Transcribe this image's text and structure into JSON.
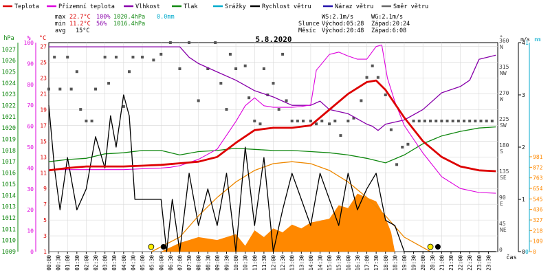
{
  "chart_data": {
    "type": "line",
    "title": "5.8.2020",
    "xlabel": "čas",
    "x_ticks": [
      "00:00",
      "00:30",
      "01:00",
      "01:30",
      "02:00",
      "02:30",
      "03:00",
      "03:30",
      "04:00",
      "04:30",
      "05:00",
      "05:30",
      "06:00",
      "06:30",
      "07:00",
      "07:30",
      "08:00",
      "08:30",
      "09:00",
      "09:30",
      "10:00",
      "10:30",
      "11:00",
      "11:30",
      "12:00",
      "12:30",
      "13:00",
      "13:30",
      "14:00",
      "14:30",
      "15:00",
      "15:30",
      "16:00",
      "16:30",
      "17:00",
      "17:30",
      "18:00",
      "18:30",
      "19:00",
      "19:30",
      "20:00",
      "20:30",
      "21:00",
      "21:30",
      "22:00",
      "22:30",
      "23:00",
      "23:30"
    ],
    "legend": [
      {
        "label": "Teplota",
        "color": "#dd0000"
      },
      {
        "label": "Přízemní teplota",
        "color": "#dd00dd"
      },
      {
        "label": "Vlhkost",
        "color": "#8800aa"
      },
      {
        "label": "Tlak",
        "color": "#118811"
      },
      {
        "label": "Srážky",
        "color": "#00aacc"
      },
      {
        "label": "Rychlost větru",
        "color": "#000000"
      },
      {
        "label": "Náraz větru",
        "color": "#2211aa"
      },
      {
        "label": "Směr větru",
        "color": "#666666"
      }
    ],
    "stats": {
      "max": {
        "label": "max",
        "temp": "22.7°C",
        "hum": "100%",
        "press": "1020.4hPa",
        "rain": "0.0mm"
      },
      "min": {
        "label": "min",
        "temp": "11.2°C",
        "hum": "56%",
        "press": "1016.4hPa"
      },
      "avg": {
        "label": "avg",
        "temp": "15°C"
      }
    },
    "info": {
      "ws": "WS:2.1m/s",
      "wg": "WG:2.1m/s",
      "sun_label": "Slunce",
      "sunrise": "Východ:05:28",
      "sunset": "Západ:20:24",
      "moon_label": "Měsíc",
      "moonrise": "Východ:20:48",
      "moonset": "Západ:6:08"
    },
    "axes": {
      "hpa": {
        "unit": "hPa",
        "ticks": [
          "1027",
          "1026",
          "1025",
          "1024",
          "1023",
          "1022",
          "1021",
          "1020",
          "1019",
          "1018",
          "1017",
          "1016",
          "1015",
          "1014",
          "1013",
          "1012",
          "1011",
          "1010",
          "1009"
        ],
        "range": [
          1009,
          1027.6
        ]
      },
      "pct": {
        "unit": "%",
        "ticks": [
          "100",
          "90",
          "80",
          "70",
          "60",
          "50",
          "40",
          "30",
          "20",
          "10",
          "0"
        ],
        "range": [
          0,
          100
        ]
      },
      "temp": {
        "unit": "°C",
        "ticks": [
          "27",
          "25",
          "23",
          "21",
          "19",
          "17",
          "15",
          "13",
          "11",
          "9",
          "7",
          "5",
          "3",
          "1"
        ],
        "range": [
          1,
          27.5
        ]
      },
      "dir": {
        "unit": "°",
        "ticks": [
          {
            "deg": "360",
            "name": "N"
          },
          {
            "deg": "315",
            "name": "NW"
          },
          {
            "deg": "270",
            "name": "W"
          },
          {
            "deg": "225",
            "name": "SW"
          },
          {
            "deg": "180",
            "name": "S"
          },
          {
            "deg": "135",
            "name": "SE"
          },
          {
            "deg": "90",
            "name": "E"
          },
          {
            "deg": "45",
            "name": "NE"
          },
          {
            "deg": "0",
            "name": ""
          }
        ],
        "range": [
          0,
          360
        ]
      },
      "wind": {
        "unit": "m/s",
        "ticks": [
          "4",
          "3",
          "2",
          "1",
          "0"
        ],
        "range": [
          0,
          4
        ]
      },
      "rain": {
        "unit": "mm",
        "ticks": [
          "1",
          "0"
        ],
        "range": [
          0,
          1
        ]
      },
      "solar": {
        "ticks": [
          "981",
          "872",
          "763",
          "654",
          "545",
          "436",
          "327",
          "218",
          "109",
          "0"
        ],
        "range": [
          0,
          981
        ]
      }
    },
    "series": {
      "temperature": {
        "name": "Teplota",
        "color": "#dd0000",
        "x": [
          0,
          1,
          2,
          3,
          4,
          5,
          6,
          7,
          8,
          9,
          10,
          11,
          12,
          12.5,
          13,
          14,
          15,
          16,
          17,
          17.5,
          18,
          19,
          20,
          21,
          22,
          23,
          23.9
        ],
        "y": [
          11.3,
          11.6,
          11.8,
          11.8,
          11.8,
          11.9,
          12.0,
          12.2,
          12.4,
          13.0,
          14.8,
          16.4,
          16.7,
          16.7,
          16.7,
          17.0,
          19.0,
          21.0,
          22.5,
          22.7,
          21.5,
          18.0,
          15.0,
          13.0,
          11.8,
          11.3,
          11.2
        ]
      },
      "ground_temperature": {
        "name": "Přízemní teplota",
        "color": "#dd00dd",
        "x": [
          0,
          1,
          2,
          3,
          4,
          5,
          6,
          6.5,
          7,
          8,
          9,
          10,
          10.5,
          11,
          11.5,
          12,
          13,
          13.5,
          14,
          14.3,
          15,
          15.5,
          16,
          16.5,
          17,
          17.5,
          17.8,
          18.1,
          18.5,
          19,
          20,
          21,
          22,
          23,
          23.9
        ],
        "y": [
          11.4,
          11.4,
          11.4,
          11.4,
          11.4,
          11.5,
          11.6,
          11.7,
          11.9,
          12.7,
          14.0,
          17.5,
          19.5,
          20.5,
          19.5,
          19.3,
          19.3,
          19.4,
          19.6,
          24.0,
          26.0,
          26.3,
          25.8,
          25.4,
          25.4,
          27.0,
          27.2,
          23.0,
          20.0,
          17.0,
          13.5,
          10.5,
          9.0,
          8.5,
          8.4
        ]
      },
      "humidity": {
        "name": "Vlhkost",
        "color": "#8800aa",
        "x": [
          0,
          1,
          2,
          3,
          4,
          5,
          6,
          7,
          7.5,
          8,
          9,
          10,
          11,
          12,
          13,
          14,
          14.5,
          15,
          16,
          17,
          17.3,
          17.6,
          18,
          19,
          20,
          21,
          22,
          22.5,
          23,
          23.9
        ],
        "y": [
          98,
          98,
          98,
          98,
          98,
          98,
          98,
          98,
          93,
          90,
          86,
          82,
          77,
          74,
          70,
          70,
          72,
          68,
          66,
          61,
          60,
          58,
          61,
          63,
          68,
          76,
          79,
          82,
          92,
          94
        ]
      },
      "pressure": {
        "name": "Tlak",
        "color": "#118811",
        "x": [
          0,
          1,
          2,
          3,
          4,
          5,
          6,
          7,
          8,
          9,
          10,
          11,
          12,
          13,
          14,
          15,
          16,
          17,
          18,
          19,
          20,
          21,
          22,
          23,
          23.9
        ],
        "y": [
          1017.0,
          1017.2,
          1017.3,
          1017.7,
          1017.8,
          1018.0,
          1018.0,
          1017.6,
          1017.9,
          1018.0,
          1018.2,
          1018.1,
          1018.0,
          1018.0,
          1017.9,
          1017.8,
          1017.6,
          1017.3,
          1016.9,
          1017.6,
          1018.6,
          1019.3,
          1019.7,
          1020.0,
          1020.1
        ]
      },
      "wind_speed": {
        "name": "Rychlost větru",
        "color": "#000000",
        "x": [
          0,
          0.3,
          0.6,
          1,
          1.5,
          2,
          2.5,
          3,
          3.3,
          3.6,
          4,
          4.3,
          4.6,
          5,
          5.3,
          5.6,
          6,
          6.3,
          6.6,
          7,
          7.5,
          8,
          8.5,
          9,
          9.5,
          10,
          10.5,
          11,
          11.5,
          12,
          12.5,
          13,
          13.5,
          14,
          14.5,
          15,
          15.5,
          16,
          16.5,
          17,
          17.5,
          18,
          18.5,
          19,
          19.5,
          20,
          21,
          22,
          23,
          23.9
        ],
        "y": [
          2.8,
          1.6,
          0.8,
          1.8,
          0.8,
          1.2,
          2.2,
          1.6,
          2.6,
          2.0,
          3.0,
          2.6,
          1.0,
          1.0,
          1.0,
          1.0,
          1.0,
          0,
          1.0,
          0,
          1.5,
          0.5,
          1.2,
          0.5,
          1.5,
          0,
          2.0,
          0.5,
          1.8,
          0,
          0.8,
          1.5,
          1.0,
          0.5,
          1.5,
          1.0,
          0.5,
          1.5,
          0.8,
          1.2,
          1.5,
          0.6,
          0.5,
          0,
          0,
          0,
          0,
          0,
          0,
          0
        ]
      },
      "solar": {
        "name": "",
        "color": "#ff8800",
        "x": [
          6,
          7,
          8,
          9,
          10,
          10.5,
          11,
          11.5,
          12,
          12.5,
          13,
          13.5,
          14,
          14.5,
          15,
          15.5,
          16,
          16.5,
          17,
          17.5,
          18,
          18.3,
          18.5
        ],
        "y": [
          0,
          90,
          150,
          120,
          180,
          60,
          220,
          150,
          240,
          200,
          280,
          240,
          300,
          320,
          340,
          480,
          450,
          600,
          560,
          520,
          350,
          200,
          0
        ]
      },
      "solar_theoretical": {
        "name": "",
        "color": "#ee8800",
        "x": [
          5.5,
          7,
          8,
          9,
          10,
          11,
          12,
          13,
          14,
          15,
          16,
          17,
          18,
          19,
          20.4
        ],
        "y": [
          0,
          150,
          370,
          560,
          720,
          840,
          910,
          930,
          910,
          840,
          720,
          560,
          370,
          150,
          0
        ]
      },
      "wind_direction": {
        "name": "Směr větru",
        "color": "#555555",
        "points": [
          [
            0.0,
            280
          ],
          [
            0.3,
            335
          ],
          [
            0.6,
            280
          ],
          [
            1.0,
            335
          ],
          [
            1.2,
            280
          ],
          [
            1.5,
            310
          ],
          [
            1.7,
            245
          ],
          [
            2.0,
            225
          ],
          [
            2.3,
            225
          ],
          [
            2.5,
            280
          ],
          [
            3.0,
            335
          ],
          [
            3.2,
            290
          ],
          [
            3.6,
            335
          ],
          [
            4.0,
            250
          ],
          [
            4.3,
            310
          ],
          [
            4.5,
            335
          ],
          [
            5.0,
            335
          ],
          [
            5.6,
            330
          ],
          [
            6.0,
            340
          ],
          [
            6.5,
            360
          ],
          [
            7.0,
            315
          ],
          [
            7.5,
            360
          ],
          [
            8.0,
            260
          ],
          [
            8.5,
            315
          ],
          [
            8.9,
            360
          ],
          [
            9.2,
            290
          ],
          [
            9.5,
            245
          ],
          [
            9.7,
            340
          ],
          [
            10.0,
            315
          ],
          [
            10.5,
            320
          ],
          [
            10.7,
            265
          ],
          [
            11.0,
            225
          ],
          [
            11.3,
            220
          ],
          [
            11.5,
            315
          ],
          [
            11.7,
            270
          ],
          [
            12.0,
            290
          ],
          [
            12.3,
            245
          ],
          [
            12.5,
            340
          ],
          [
            12.7,
            260
          ],
          [
            13.0,
            225
          ],
          [
            13.3,
            225
          ],
          [
            13.6,
            225
          ],
          [
            14.0,
            225
          ],
          [
            14.3,
            220
          ],
          [
            14.6,
            225
          ],
          [
            15.0,
            220
          ],
          [
            15.3,
            225
          ],
          [
            15.6,
            200
          ],
          [
            16.0,
            225
          ],
          [
            16.3,
            230
          ],
          [
            16.7,
            260
          ],
          [
            17.0,
            300
          ],
          [
            17.3,
            320
          ],
          [
            17.6,
            300
          ],
          [
            18.0,
            270
          ],
          [
            18.3,
            210
          ],
          [
            18.6,
            150
          ],
          [
            18.9,
            180
          ],
          [
            19.2,
            185
          ],
          [
            19.5,
            225
          ],
          [
            19.8,
            225
          ],
          [
            20.1,
            225
          ],
          [
            20.4,
            225
          ],
          [
            20.7,
            225
          ],
          [
            21.0,
            225
          ],
          [
            21.3,
            225
          ],
          [
            21.6,
            225
          ],
          [
            21.9,
            225
          ],
          [
            22.2,
            225
          ],
          [
            22.5,
            225
          ],
          [
            22.8,
            225
          ],
          [
            23.1,
            225
          ],
          [
            23.4,
            225
          ],
          [
            23.7,
            225
          ]
        ]
      }
    },
    "markers": {
      "sunrise_hour": 5.47,
      "sunset_hour": 20.4,
      "moonset_hour": 6.13,
      "moonrise_hour": 20.8
    }
  }
}
